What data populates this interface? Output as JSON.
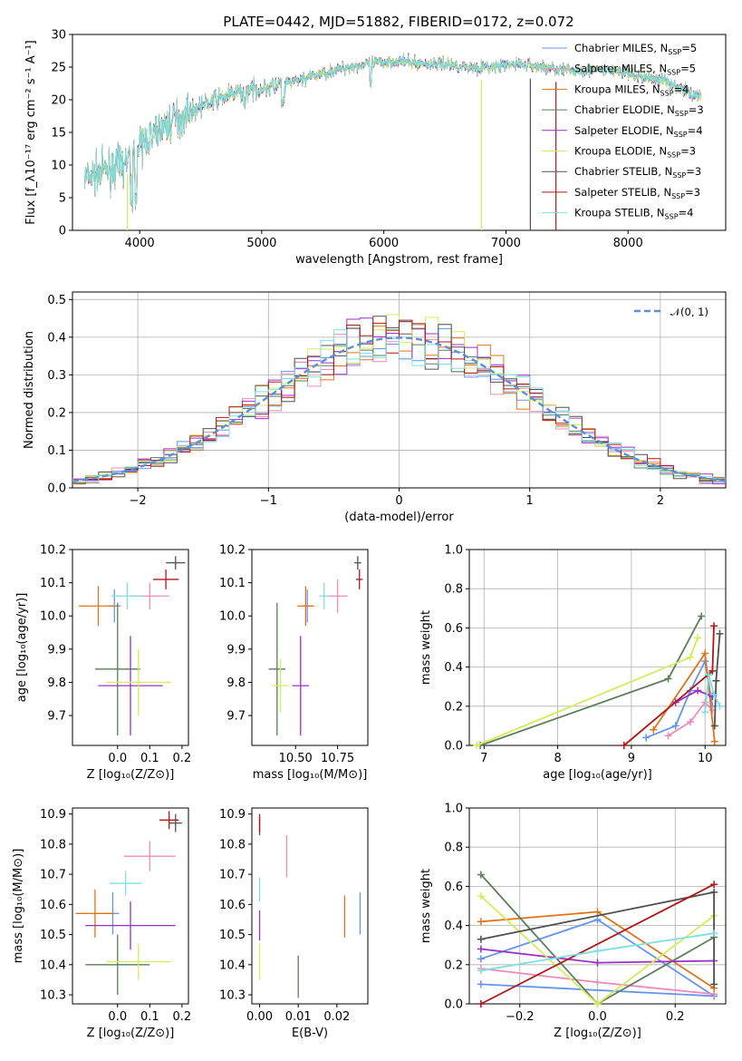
{
  "figure": {
    "title": "PLATE=0442, MJD=51882, FIBERID=0172, z=0.072"
  },
  "series_styles": [
    {
      "name": "Chabrier MILES",
      "nssp": "5",
      "color": "#6495ed"
    },
    {
      "name": "Salpeter MILES",
      "nssp": "5",
      "color": "#f08cb8"
    },
    {
      "name": "Kroupa MILES",
      "nssp": "4",
      "color": "#e0741c"
    },
    {
      "name": "Chabrier ELODIE",
      "nssp": "3",
      "color": "#5a7f5a"
    },
    {
      "name": "Salpeter ELODIE",
      "nssp": "4",
      "color": "#9b30c8"
    },
    {
      "name": "Kroupa ELODIE",
      "nssp": "3",
      "color": "#d4ec5a"
    },
    {
      "name": "Chabrier STELIB",
      "nssp": "3",
      "color": "#505050"
    },
    {
      "name": "Salpeter STELIB",
      "nssp": "3",
      "color": "#b01818"
    },
    {
      "name": "Kroupa STELIB",
      "nssp": "4",
      "color": "#7fdfe0"
    }
  ],
  "chart_data": [
    {
      "id": "spectrum",
      "type": "line",
      "title": "PLATE=0442, MJD=51882, FIBERID=0172, z=0.072",
      "xlabel": "wavelength [Angstrom, rest frame]",
      "ylabel": "Flux [f$_\\lambda$10$^{-17}$ erg cm$^{-2}$ s$^{-1}$ A$^{-1}$]",
      "xlim": [
        3450,
        8800
      ],
      "ylim": [
        0,
        30
      ],
      "xticks": [
        "4000",
        "5000",
        "6000",
        "7000",
        "8000"
      ],
      "yticks": [
        "0",
        "5",
        "10",
        "15",
        "20",
        "25",
        "30"
      ],
      "grid": false,
      "legend": "top-right",
      "legend_entries": [
        "Chabrier MILES, N_SSP=5",
        "Salpeter MILES, N_SSP=5",
        "Kroupa MILES, N_SSP=4",
        "Chabrier ELODIE, N_SSP=3",
        "Salpeter ELODIE, N_SSP=4",
        "Kroupa ELODIE, N_SSP=3",
        "Chabrier STELIB, N_SSP=3",
        "Salpeter STELIB, N_SSP=3",
        "Kroupa STELIB, N_SSP=4"
      ],
      "continuum": {
        "x": [
          3550,
          3700,
          3850,
          3950,
          4050,
          4200,
          4350,
          4500,
          4700,
          4900,
          5100,
          5300,
          5500,
          5700,
          5900,
          6100,
          6300,
          6500,
          6700,
          6900,
          7100,
          7300,
          7500,
          7700,
          7900,
          8100,
          8300,
          8500,
          8600
        ],
        "y": [
          8,
          9,
          10,
          11,
          14,
          16,
          17.5,
          19,
          20.5,
          21.5,
          22,
          23,
          24,
          25,
          25.5,
          26,
          25.5,
          25.5,
          25,
          25,
          25.5,
          25,
          24.5,
          24.5,
          24.5,
          23.5,
          23,
          21,
          20.5
        ]
      }
    },
    {
      "id": "residuals",
      "type": "area",
      "xlabel": "(data-model)/error",
      "ylabel": "Normed distribution",
      "xlim": [
        -2.5,
        2.5
      ],
      "ylim": [
        0,
        0.52
      ],
      "xticks": [
        "−2",
        "−1",
        "0",
        "1",
        "2"
      ],
      "yticks": [
        "0.0",
        "0.1",
        "0.2",
        "0.3",
        "0.4",
        "0.5"
      ],
      "grid": true,
      "legend": "top-right",
      "reference_curve": "N(0,1)",
      "reference_label": "𝒩(0, 1)",
      "bin_width": 0.1
    },
    {
      "id": "age-vs-Z",
      "type": "scatter",
      "xlabel": "Z [log10(Z/Z⊙)]",
      "ylabel": "age  [log10(age/yr)]",
      "xlim": [
        -0.14,
        0.22
      ],
      "ylim": [
        9.61,
        10.2
      ],
      "xticks": [
        "0.0",
        "0.1",
        "0.2"
      ],
      "yticks": [
        "9.7",
        "9.8",
        "9.9",
        "10.0",
        "10.1",
        "10.2"
      ],
      "points": [
        {
          "series": 0,
          "x": -0.01,
          "y": 10.03,
          "xerr": 0.02,
          "yerr": 0.05
        },
        {
          "series": 1,
          "x": 0.1,
          "y": 10.06,
          "xerr": 0.06,
          "yerr": 0.04
        },
        {
          "series": 2,
          "x": -0.06,
          "y": 10.03,
          "xerr": 0.06,
          "yerr": 0.06
        },
        {
          "series": 3,
          "x": 0.0,
          "y": 9.84,
          "xerr": 0.07,
          "yerr": 0.2
        },
        {
          "series": 4,
          "x": 0.04,
          "y": 9.79,
          "xerr": 0.1,
          "yerr": 0.15
        },
        {
          "series": 5,
          "x": 0.065,
          "y": 9.8,
          "xerr": 0.1,
          "yerr": 0.1
        },
        {
          "series": 6,
          "x": 0.18,
          "y": 10.16,
          "xerr": 0.03,
          "yerr": 0.02
        },
        {
          "series": 7,
          "x": 0.15,
          "y": 10.11,
          "xerr": 0.04,
          "yerr": 0.03
        },
        {
          "series": 8,
          "x": 0.03,
          "y": 10.06,
          "xerr": 0.05,
          "yerr": 0.04
        }
      ]
    },
    {
      "id": "age-vs-mass",
      "type": "scatter",
      "xlabel": "mass [log10(M/M⊙)]",
      "ylabel": "",
      "xlim": [
        10.24,
        10.93
      ],
      "ylim": [
        9.61,
        10.2
      ],
      "xticks": [
        "10.50",
        "10.75"
      ],
      "yticks": [
        "9.7",
        "9.8",
        "9.9",
        "10.0",
        "10.1",
        "10.2"
      ],
      "points": [
        {
          "series": 0,
          "x": 10.57,
          "y": 10.03,
          "xerr": 0.03,
          "yerr": 0.05
        },
        {
          "series": 1,
          "x": 10.75,
          "y": 10.06,
          "xerr": 0.06,
          "yerr": 0.05
        },
        {
          "series": 2,
          "x": 10.56,
          "y": 10.03,
          "xerr": 0.05,
          "yerr": 0.06
        },
        {
          "series": 3,
          "x": 10.39,
          "y": 9.84,
          "xerr": 0.05,
          "yerr": 0.2
        },
        {
          "series": 4,
          "x": 10.53,
          "y": 9.79,
          "xerr": 0.05,
          "yerr": 0.15
        },
        {
          "series": 5,
          "x": 10.41,
          "y": 9.79,
          "xerr": 0.05,
          "yerr": 0.08
        },
        {
          "series": 6,
          "x": 10.87,
          "y": 10.16,
          "xerr": 0.02,
          "yerr": 0.02
        },
        {
          "series": 7,
          "x": 10.88,
          "y": 10.11,
          "xerr": 0.02,
          "yerr": 0.03
        },
        {
          "series": 8,
          "x": 10.67,
          "y": 10.06,
          "xerr": 0.03,
          "yerr": 0.04
        }
      ]
    },
    {
      "id": "massweight-vs-age",
      "type": "line",
      "xlabel": "age  [log10(age/yr)]",
      "ylabel": "mass weight",
      "xlim": [
        6.8,
        10.28
      ],
      "ylim": [
        0,
        1.0
      ],
      "xticks": [
        "7",
        "8",
        "9",
        "10"
      ],
      "yticks": [
        "0.0",
        "0.2",
        "0.4",
        "0.6",
        "0.8",
        "1.0"
      ],
      "grid": true,
      "series": [
        {
          "series": 0,
          "x": [
            9.2,
            9.6,
            9.8,
            10.0,
            10.1
          ],
          "y": [
            0.04,
            0.1,
            0.28,
            0.43,
            0.2
          ]
        },
        {
          "series": 1,
          "x": [
            9.5,
            9.8,
            10.0,
            10.1
          ],
          "y": [
            0.05,
            0.12,
            0.22,
            0.18
          ]
        },
        {
          "series": 2,
          "x": [
            9.3,
            10.0,
            10.13
          ],
          "y": [
            0.08,
            0.47,
            0.02
          ]
        },
        {
          "series": 3,
          "x": [
            6.95,
            9.5,
            9.95
          ],
          "y": [
            0.0,
            0.34,
            0.66
          ]
        },
        {
          "series": 4,
          "x": [
            9.6,
            9.9,
            10.1
          ],
          "y": [
            0.22,
            0.28,
            0.25
          ]
        },
        {
          "series": 5,
          "x": [
            6.9,
            9.8,
            9.9
          ],
          "y": [
            0.0,
            0.45,
            0.55
          ]
        },
        {
          "series": 6,
          "x": [
            10.13,
            10.15,
            10.2
          ],
          "y": [
            0.1,
            0.33,
            0.57
          ]
        },
        {
          "series": 7,
          "x": [
            8.9,
            10.1,
            10.12
          ],
          "y": [
            0.0,
            0.38,
            0.61
          ]
        },
        {
          "series": 8,
          "x": [
            10.0,
            10.05,
            10.12,
            10.2
          ],
          "y": [
            0.17,
            0.36,
            0.26,
            0.2
          ]
        }
      ]
    },
    {
      "id": "mass-vs-Z",
      "type": "scatter",
      "xlabel": "Z [log10(Z/Z⊙)]",
      "ylabel": "mass [log10(M/M⊙)]",
      "xlim": [
        -0.14,
        0.22
      ],
      "ylim": [
        10.27,
        10.92
      ],
      "xticks": [
        "0.0",
        "0.1",
        "0.2"
      ],
      "yticks": [
        "10.3",
        "10.4",
        "10.5",
        "10.6",
        "10.7",
        "10.8",
        "10.9"
      ],
      "points": [
        {
          "series": 0,
          "x": -0.015,
          "y": 10.57,
          "xerr": 0.02,
          "yerr": 0.07
        },
        {
          "series": 1,
          "x": 0.1,
          "y": 10.76,
          "xerr": 0.08,
          "yerr": 0.05
        },
        {
          "series": 2,
          "x": -0.07,
          "y": 10.57,
          "xerr": 0.06,
          "yerr": 0.08
        },
        {
          "series": 3,
          "x": 0.0,
          "y": 10.4,
          "xerr": 0.1,
          "yerr": 0.1
        },
        {
          "series": 4,
          "x": 0.04,
          "y": 10.53,
          "xerr": 0.14,
          "yerr": 0.08
        },
        {
          "series": 5,
          "x": 0.065,
          "y": 10.41,
          "xerr": 0.1,
          "yerr": 0.06
        },
        {
          "series": 6,
          "x": 0.18,
          "y": 10.87,
          "xerr": 0.02,
          "yerr": 0.03
        },
        {
          "series": 7,
          "x": 0.16,
          "y": 10.88,
          "xerr": 0.03,
          "yerr": 0.03
        },
        {
          "series": 8,
          "x": 0.025,
          "y": 10.67,
          "xerr": 0.05,
          "yerr": 0.04
        }
      ]
    },
    {
      "id": "mass-vs-ebv",
      "type": "scatter",
      "xlabel": "E(B-V)",
      "ylabel": "",
      "xlim": [
        -0.002,
        0.028
      ],
      "ylim": [
        10.27,
        10.92
      ],
      "xticks": [
        "0.00",
        "0.01",
        "0.02"
      ],
      "yticks": [
        "10.3",
        "10.4",
        "10.5",
        "10.6",
        "10.7",
        "10.8",
        "10.9"
      ],
      "points": [
        {
          "series": 0,
          "x": 0.026,
          "y": 10.57,
          "xerr": 0,
          "yerr": 0.07
        },
        {
          "series": 1,
          "x": 0.007,
          "y": 10.76,
          "xerr": 0,
          "yerr": 0.07
        },
        {
          "series": 2,
          "x": 0.022,
          "y": 10.56,
          "xerr": 0,
          "yerr": 0.07
        },
        {
          "series": 3,
          "x": 0.01,
          "y": 10.36,
          "xerr": 0,
          "yerr": 0.07
        },
        {
          "series": 4,
          "x": 0.0,
          "y": 10.53,
          "xerr": 0,
          "yerr": 0.05
        },
        {
          "series": 5,
          "x": 0.0,
          "y": 10.41,
          "xerr": 0,
          "yerr": 0.06
        },
        {
          "series": 6,
          "x": 0.0,
          "y": 10.86,
          "xerr": 0,
          "yerr": 0.03
        },
        {
          "series": 7,
          "x": 0.0,
          "y": 10.87,
          "xerr": 0,
          "yerr": 0.03
        },
        {
          "series": 8,
          "x": 0.0,
          "y": 10.65,
          "xerr": 0,
          "yerr": 0.04
        }
      ]
    },
    {
      "id": "massweight-vs-Z",
      "type": "line",
      "xlabel": "Z [log10(Z/Z⊙)]",
      "ylabel": "mass weight",
      "xlim": [
        -0.33,
        0.33
      ],
      "ylim": [
        0,
        1.0
      ],
      "xticks": [
        "−0.2",
        "0.0",
        "0.2"
      ],
      "yticks": [
        "0.0",
        "0.2",
        "0.4",
        "0.6",
        "0.8",
        "1.0"
      ],
      "grid": true,
      "series": [
        {
          "series": 0,
          "x": [
            -0.3,
            0.0,
            0.3,
            -0.3
          ],
          "y": [
            0.23,
            0.43,
            0.04,
            0.1
          ]
        },
        {
          "series": 1,
          "x": [
            -0.3,
            0.0,
            0.3
          ],
          "y": [
            0.18,
            0.11,
            0.05
          ]
        },
        {
          "series": 2,
          "x": [
            -0.3,
            0.0,
            0.3
          ],
          "y": [
            0.42,
            0.47,
            0.08
          ]
        },
        {
          "series": 3,
          "x": [
            -0.3,
            0.0,
            0.3
          ],
          "y": [
            0.66,
            0.0,
            0.34
          ]
        },
        {
          "series": 4,
          "x": [
            -0.3,
            0.0,
            0.3
          ],
          "y": [
            0.28,
            0.21,
            0.22
          ]
        },
        {
          "series": 5,
          "x": [
            -0.3,
            0.0,
            0.3
          ],
          "y": [
            0.55,
            0.0,
            0.45
          ]
        },
        {
          "series": 6,
          "x": [
            -0.3,
            0.3,
            0.3
          ],
          "y": [
            0.33,
            0.57,
            0.1
          ]
        },
        {
          "series": 7,
          "x": [
            -0.3,
            0.3
          ],
          "y": [
            0.0,
            0.61
          ]
        },
        {
          "series": 8,
          "x": [
            -0.3,
            0.0,
            0.3
          ],
          "y": [
            0.17,
            0.27,
            0.36
          ]
        }
      ]
    }
  ]
}
